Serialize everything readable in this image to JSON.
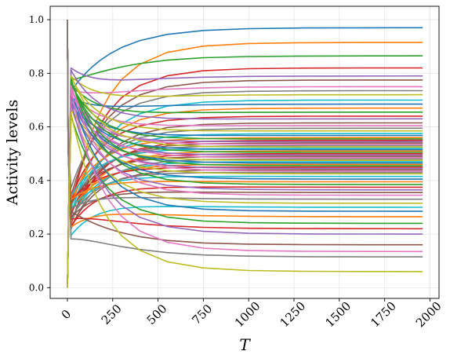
{
  "chart_data": {
    "type": "line",
    "title": "",
    "xlabel": "T",
    "ylabel": "Activity levels",
    "xlim": [
      -95,
      2050
    ],
    "ylim": [
      -0.04,
      1.05
    ],
    "xticks": [
      0,
      250,
      500,
      750,
      1000,
      1250,
      1500,
      1750,
      2000
    ],
    "xtick_labels": [
      "0",
      "250",
      "500",
      "750",
      "1000",
      "1250",
      "1500",
      "1750",
      "2000"
    ],
    "yticks": [
      0.0,
      0.2,
      0.4,
      0.6,
      0.8,
      1.0
    ],
    "ytick_labels": [
      "0.0",
      "0.2",
      "0.4",
      "0.6",
      "0.8",
      "1.0"
    ],
    "grid": true,
    "x_end": 1960,
    "palette": [
      "#1f77b4",
      "#ff7f0e",
      "#2ca02c",
      "#d62728",
      "#9467bd",
      "#8c564b",
      "#e377c2",
      "#7f7f7f",
      "#bcbd22",
      "#17becf"
    ],
    "series_final_values": [
      0.97,
      0.915,
      0.865,
      0.82,
      0.79,
      0.775,
      0.75,
      0.735,
      0.72,
      0.7,
      0.685,
      0.67,
      0.655,
      0.64,
      0.63,
      0.615,
      0.605,
      0.595,
      0.585,
      0.575,
      0.568,
      0.56,
      0.555,
      0.55,
      0.545,
      0.54,
      0.535,
      0.53,
      0.525,
      0.52,
      0.515,
      0.51,
      0.505,
      0.5,
      0.495,
      0.49,
      0.485,
      0.48,
      0.475,
      0.47,
      0.465,
      0.46,
      0.455,
      0.45,
      0.445,
      0.44,
      0.435,
      0.43,
      0.425,
      0.415,
      0.405,
      0.395,
      0.385,
      0.375,
      0.365,
      0.355,
      0.345,
      0.33,
      0.315,
      0.3,
      0.285,
      0.265,
      0.24,
      0.22,
      0.2,
      0.16,
      0.135,
      0.115,
      0.06
    ]
  }
}
